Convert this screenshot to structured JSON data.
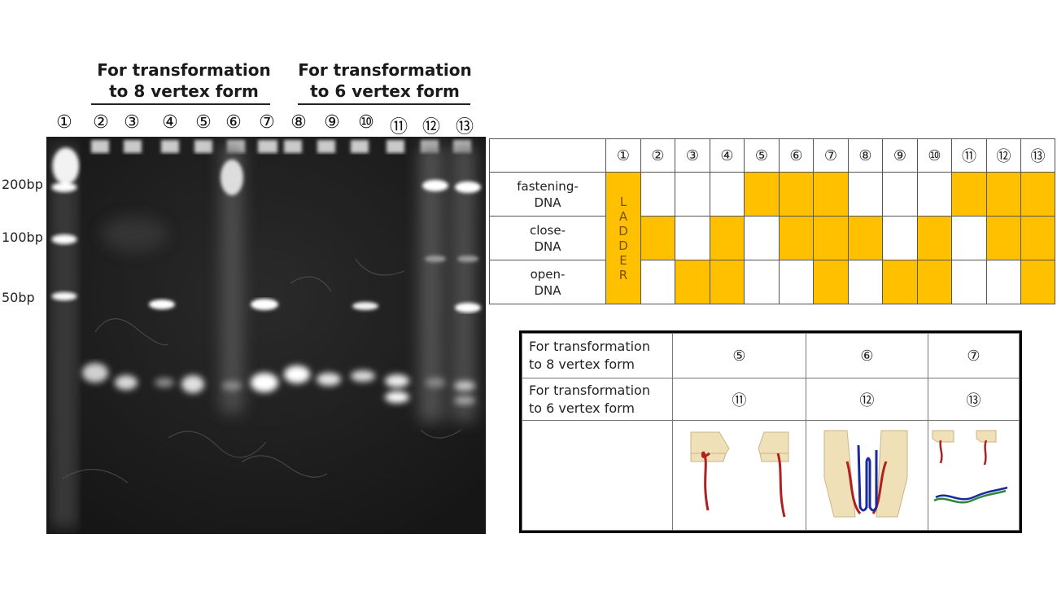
{
  "groups": [
    {
      "title_line1": "For transformation",
      "title_line2": "to 8 vertex form"
    },
    {
      "title_line1": "For transformation",
      "title_line2": "to 6 vertex form"
    }
  ],
  "lanes": [
    "①",
    "②",
    "③",
    "④",
    "⑤",
    "⑥",
    "⑦",
    "⑧",
    "⑨",
    "⑩",
    "⑪",
    "⑫",
    "⑬"
  ],
  "ladder_labels": [
    "200bp",
    "100bp",
    "50bp"
  ],
  "table": {
    "header": [
      "①",
      "②",
      "③",
      "④",
      "⑤",
      "⑥",
      "⑦",
      "⑧",
      "⑨",
      "⑩",
      "⑪",
      "⑫",
      "⑬"
    ],
    "rows": [
      {
        "label_l1": "fastening-",
        "label_l2": "DNA",
        "cells": [
          0,
          0,
          0,
          1,
          1,
          1,
          0,
          0,
          0,
          1,
          1,
          1
        ]
      },
      {
        "label_l1": "close-",
        "label_l2": "DNA",
        "cells": [
          1,
          0,
          1,
          0,
          1,
          1,
          1,
          0,
          1,
          0,
          1,
          1
        ]
      },
      {
        "label_l1": "open-",
        "label_l2": "DNA",
        "cells": [
          0,
          1,
          1,
          0,
          0,
          1,
          0,
          1,
          1,
          0,
          0,
          1
        ]
      }
    ],
    "ladder_text": [
      "L",
      "A",
      "D",
      "D",
      "E",
      "R"
    ],
    "on_color": "#ffc000"
  },
  "legend": {
    "row1_l1": "For transformation",
    "row1_l2": "to 8 vertex form",
    "row1_vals": [
      "⑤",
      "⑥",
      "⑦"
    ],
    "row2_l1": "For transformation",
    "row2_l2": "to 6 vertex form",
    "row2_vals": [
      "⑪",
      "⑫",
      "⑬"
    ]
  }
}
